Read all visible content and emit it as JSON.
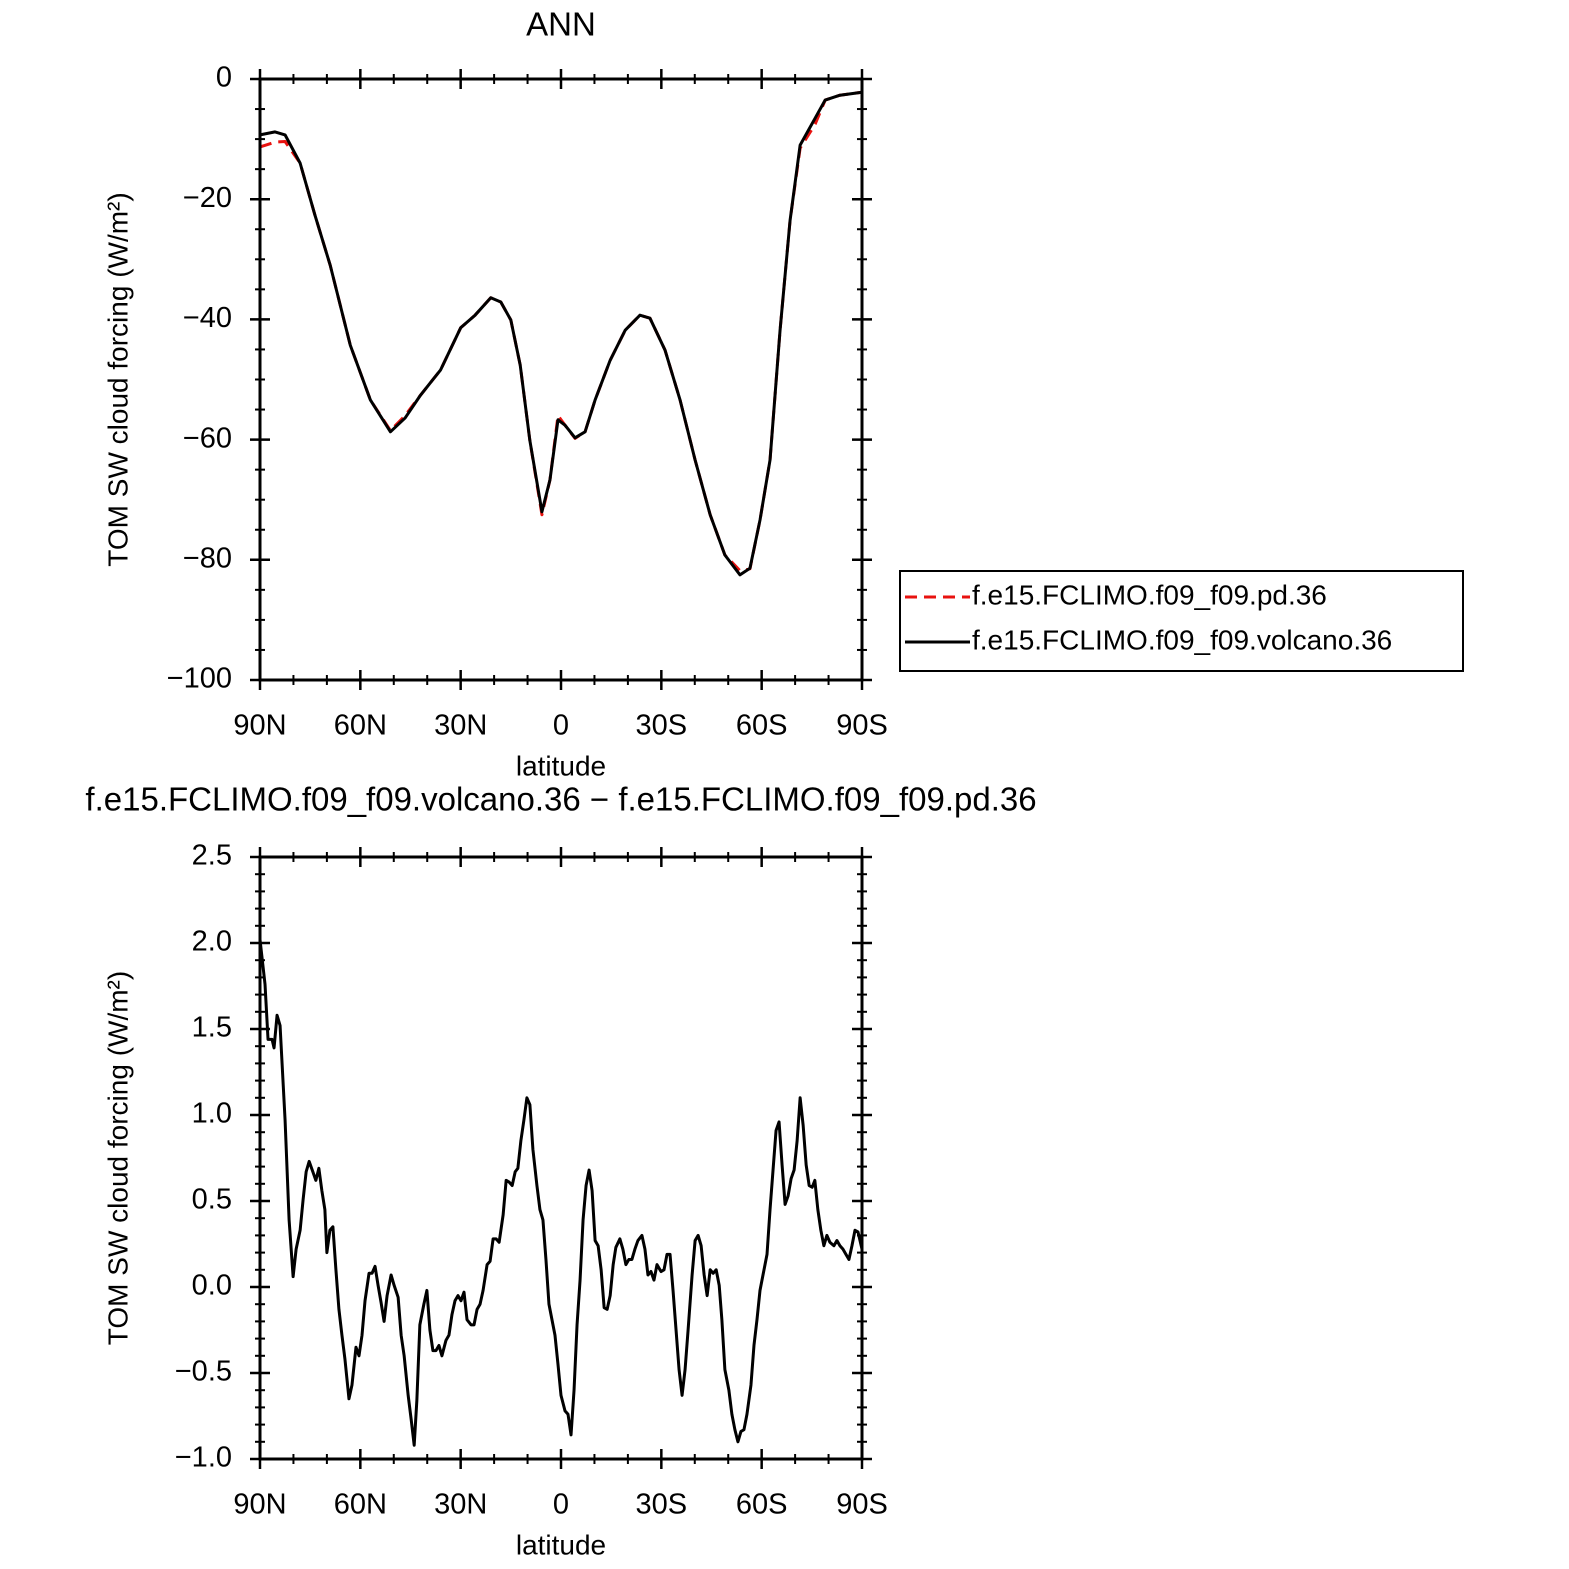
{
  "chart_data": [
    {
      "type": "line",
      "title": "ANN",
      "xlabel": "latitude",
      "ylabel": "TOM SW cloud forcing (W/m²)",
      "x": [
        90,
        85.5,
        82.5,
        78,
        73.6,
        69,
        63,
        57,
        51,
        46.6,
        42,
        36,
        30,
        25.7,
        21,
        18,
        15,
        12.2,
        9.3,
        5.7,
        3.3,
        0.9,
        -1.2,
        -4.2,
        -7.2,
        -10.2,
        -14.7,
        -19.2,
        -23.6,
        -26.6,
        -31.1,
        -35.6,
        -40.1,
        -44.6,
        -49,
        -53.5,
        -56.5,
        -59.5,
        -62.5,
        -65.5,
        -68.5,
        -71.5,
        -76,
        -79,
        -83.4,
        -90
      ],
      "series": [
        {
          "name": "f.e15.FCLIMO.f09_f09.pd.36",
          "color": "#e8120f",
          "dashed": true,
          "values": [
            -11.3,
            -10.5,
            -10.4,
            -14,
            -22.6,
            -31,
            -44.3,
            -53.4,
            -58.5,
            -56,
            -52.6,
            -48.4,
            -41.4,
            -39.3,
            -36.4,
            -37.1,
            -40.1,
            -47.6,
            -60.2,
            -72.5,
            -66.7,
            -56,
            -57.6,
            -59.8,
            -58.7,
            -53.4,
            -46.8,
            -41.8,
            -39.3,
            -39.8,
            -45.1,
            -53.4,
            -63.4,
            -72.5,
            -79.2,
            -81.8,
            -81.5,
            -73.4,
            -63.4,
            -41.8,
            -23.5,
            -11.5,
            -7.5,
            -3.5,
            -2.7,
            -2.2
          ]
        },
        {
          "name": "f.e15.FCLIMO.f09_f09.volcano.36",
          "color": "#000000",
          "dashed": false,
          "values": [
            -9.3,
            -8.8,
            -9.3,
            -14,
            -22.6,
            -31,
            -44.3,
            -53.4,
            -58.7,
            -56.4,
            -52.6,
            -48.4,
            -41.4,
            -39.3,
            -36.4,
            -37.1,
            -40.1,
            -47.6,
            -60.2,
            -72,
            -66.7,
            -56.7,
            -57.6,
            -59.7,
            -58.7,
            -53.4,
            -46.8,
            -41.8,
            -39.3,
            -39.8,
            -45.1,
            -53.4,
            -63.4,
            -72.5,
            -79.2,
            -82.5,
            -81.4,
            -73.4,
            -63.4,
            -41.8,
            -23.5,
            -11,
            -6.5,
            -3.5,
            -2.7,
            -2.2
          ]
        }
      ],
      "xlim": [
        90,
        -90
      ],
      "xticks": [
        {
          "value": 90,
          "label": "90N"
        },
        {
          "value": 60,
          "label": "60N"
        },
        {
          "value": 30,
          "label": "30N"
        },
        0,
        {
          "value": -30,
          "label": "30S"
        },
        {
          "value": -60,
          "label": "60S"
        },
        {
          "value": -90,
          "label": "90S"
        }
      ],
      "minor_xticks": [
        80,
        70,
        50,
        40,
        20,
        10,
        -10,
        -20,
        -40,
        -50,
        -70,
        -80
      ],
      "ylim": [
        -100,
        0
      ],
      "yticks": [
        0,
        {
          "value": -20,
          "label": "−20"
        },
        {
          "value": -40,
          "label": "−40"
        },
        {
          "value": -60,
          "label": "−60"
        },
        {
          "value": -80,
          "label": "−80"
        },
        {
          "value": -100,
          "label": "−100"
        }
      ],
      "minor_yticks": [
        -5,
        -10,
        -15,
        -25,
        -30,
        -35,
        -45,
        -50,
        -55,
        -65,
        -70,
        -75,
        -85,
        -90,
        -95
      ],
      "legend": "right"
    },
    {
      "type": "line",
      "title": "f.e15.FCLIMO.f09_f09.volcano.36 − f.e15.FCLIMO.f09_f09.pd.36",
      "xlabel": "latitude",
      "ylabel": "TOM SW cloud forcing (W/m²)",
      "color": "#000000",
      "x": [
        90,
        88.5,
        87.6,
        86.4,
        85.8,
        84.9,
        84,
        82.5,
        81.3,
        80.1,
        79.2,
        78,
        77.1,
        76.2,
        75.3,
        74.2,
        73.3,
        72.4,
        71.5,
        70.6,
        70,
        69.1,
        68.2,
        67.3,
        66.4,
        65.5,
        64.6,
        63.4,
        62.5,
        61.3,
        60.4,
        59.5,
        58.6,
        57.4,
        56.5,
        55.6,
        54.7,
        53.8,
        52.9,
        52,
        50.8,
        49.9,
        48.7,
        47.8,
        46.9,
        45.7,
        44.8,
        43.9,
        43.1,
        42.2,
        41,
        40.1,
        39.2,
        38.3,
        37.4,
        36.5,
        35.6,
        34.4,
        33.5,
        32.6,
        31.7,
        30.8,
        29.9,
        29,
        28.1,
        26.9,
        26,
        25.1,
        24.2,
        23.3,
        22.1,
        21.2,
        20.3,
        19.4,
        18.5,
        17.3,
        16.4,
        15.5,
        14.6,
        13.7,
        12.9,
        12,
        11.1,
        10.2,
        9.3,
        8.4,
        7.2,
        6.3,
        5.4,
        4.5,
        3.6,
        2.7,
        1.8,
        0.9,
        0,
        -1.2,
        -2.1,
        -3,
        -3.9,
        -4.8,
        -5.7,
        -6.6,
        -7.5,
        -8.4,
        -9.3,
        -10.2,
        -11.1,
        -12,
        -12.9,
        -13.8,
        -14.7,
        -15.6,
        -16.4,
        -17.6,
        -18.5,
        -19.4,
        -20.3,
        -21.2,
        -22.1,
        -23,
        -24.2,
        -25.1,
        -26,
        -26.9,
        -27.8,
        -28.7,
        -29.9,
        -30.8,
        -31.7,
        -32.6,
        -33.5,
        -34.4,
        -35.3,
        -36.2,
        -37.1,
        -38,
        -39.2,
        -40.1,
        -41,
        -41.9,
        -42.8,
        -43.7,
        -44.6,
        -45.5,
        -46.4,
        -47.3,
        -48.1,
        -49,
        -50.2,
        -51.1,
        -52,
        -52.9,
        -53.8,
        -54.7,
        -55.6,
        -56.8,
        -57.7,
        -58.6,
        -59.5,
        -60.4,
        -61.6,
        -62.5,
        -63.4,
        -64.3,
        -65.2,
        -66.1,
        -67,
        -67.9,
        -68.8,
        -69.7,
        -70.6,
        -71.5,
        -72.4,
        -73.3,
        -74.2,
        -75.1,
        -75.9,
        -76.8,
        -77.7,
        -78.6,
        -79.5,
        -80.4,
        -81.6,
        -82.5,
        -83.4,
        -84.3,
        -85.2,
        -86.1,
        -87,
        -87.9,
        -88.8,
        -90
      ],
      "values": [
        2.02,
        1.76,
        1.44,
        1.44,
        1.39,
        1.58,
        1.52,
        0.97,
        0.39,
        0.06,
        0.22,
        0.33,
        0.51,
        0.67,
        0.73,
        0.67,
        0.62,
        0.69,
        0.56,
        0.45,
        0.2,
        0.33,
        0.35,
        0.1,
        -0.13,
        -0.28,
        -0.42,
        -0.65,
        -0.57,
        -0.35,
        -0.4,
        -0.28,
        -0.08,
        0.08,
        0.08,
        0.12,
        0.01,
        -0.09,
        -0.2,
        -0.05,
        0.07,
        0.01,
        -0.06,
        -0.28,
        -0.4,
        -0.63,
        -0.77,
        -0.92,
        -0.66,
        -0.22,
        -0.1,
        -0.02,
        -0.25,
        -0.37,
        -0.37,
        -0.34,
        -0.4,
        -0.31,
        -0.28,
        -0.16,
        -0.08,
        -0.05,
        -0.08,
        -0.03,
        -0.19,
        -0.22,
        -0.22,
        -0.13,
        -0.1,
        -0.02,
        0.13,
        0.15,
        0.28,
        0.28,
        0.26,
        0.42,
        0.62,
        0.61,
        0.59,
        0.67,
        0.69,
        0.85,
        0.97,
        1.1,
        1.06,
        0.8,
        0.59,
        0.45,
        0.39,
        0.16,
        -0.1,
        -0.19,
        -0.28,
        -0.45,
        -0.63,
        -0.72,
        -0.74,
        -0.86,
        -0.6,
        -0.22,
        0.04,
        0.39,
        0.59,
        0.68,
        0.56,
        0.27,
        0.24,
        0.1,
        -0.12,
        -0.13,
        -0.05,
        0.13,
        0.23,
        0.28,
        0.22,
        0.13,
        0.16,
        0.16,
        0.22,
        0.27,
        0.3,
        0.22,
        0.07,
        0.09,
        0.04,
        0.13,
        0.09,
        0.1,
        0.19,
        0.19,
        -0.02,
        -0.25,
        -0.48,
        -0.63,
        -0.48,
        -0.25,
        0.07,
        0.27,
        0.3,
        0.24,
        0.07,
        -0.05,
        0.1,
        0.08,
        0.1,
        0.01,
        -0.19,
        -0.48,
        -0.6,
        -0.74,
        -0.83,
        -0.9,
        -0.84,
        -0.83,
        -0.74,
        -0.57,
        -0.34,
        -0.19,
        -0.02,
        0.07,
        0.19,
        0.45,
        0.68,
        0.91,
        0.96,
        0.71,
        0.48,
        0.53,
        0.63,
        0.68,
        0.85,
        1.1,
        0.94,
        0.71,
        0.59,
        0.58,
        0.62,
        0.45,
        0.33,
        0.24,
        0.3,
        0.26,
        0.24,
        0.27,
        0.24,
        0.22,
        0.19,
        0.16,
        0.24,
        0.33,
        0.32,
        0.22
      ],
      "xlim": [
        90,
        -90
      ],
      "xticks": [
        {
          "value": 90,
          "label": "90N"
        },
        {
          "value": 60,
          "label": "60N"
        },
        {
          "value": 30,
          "label": "30N"
        },
        0,
        {
          "value": -30,
          "label": "30S"
        },
        {
          "value": -60,
          "label": "60S"
        },
        {
          "value": -90,
          "label": "90S"
        }
      ],
      "minor_xticks": [
        80,
        70,
        50,
        40,
        20,
        10,
        -10,
        -20,
        -40,
        -50,
        -70,
        -80
      ],
      "ylim": [
        -1,
        2.5
      ],
      "yticks": [
        {
          "value": -1,
          "label": "−1.0"
        },
        {
          "value": -0.5,
          "label": "−0.5"
        },
        {
          "value": 0,
          "label": "0.0"
        },
        0.5,
        {
          "value": 1,
          "label": "1.0"
        },
        1.5,
        {
          "value": 2,
          "label": "2.0"
        },
        2.5
      ],
      "minor_yticks": [
        -0.9,
        -0.8,
        -0.7,
        -0.6,
        -0.4,
        -0.3,
        -0.2,
        -0.1,
        0.1,
        0.2,
        0.3,
        0.4,
        0.6,
        0.7,
        0.8,
        0.9,
        1.1,
        1.2,
        1.3,
        1.4,
        1.6,
        1.7,
        1.8,
        1.9,
        2.1,
        2.2,
        2.3,
        2.4
      ]
    }
  ]
}
